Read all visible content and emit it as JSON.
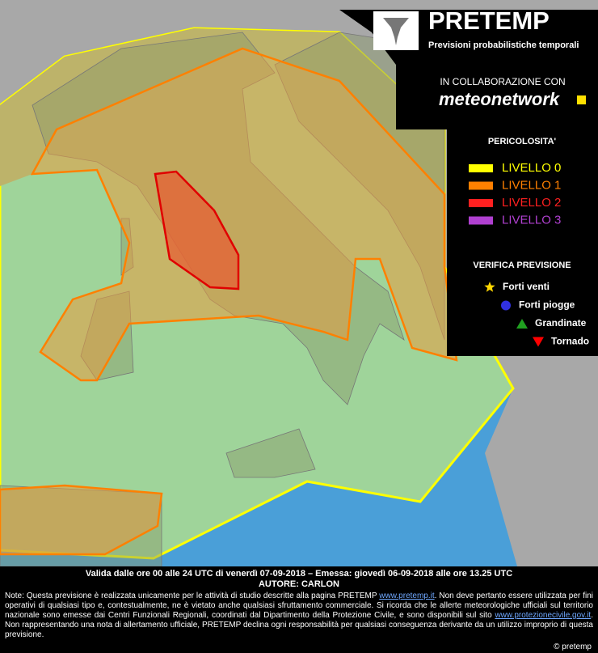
{
  "header": {
    "title": "PRETEMP",
    "subtitle": "Previsioni probabilistiche temporali",
    "collaboration": "IN COLLABORAZIONE CON",
    "partner": "meteonetwork"
  },
  "legend": {
    "title": "PERICOLOSITA'",
    "levels": [
      {
        "label": "LIVELLO 0",
        "color": "#ffff00"
      },
      {
        "label": "LIVELLO 1",
        "color": "#ff8000"
      },
      {
        "label": "LIVELLO 2",
        "color": "#ff2020"
      },
      {
        "label": "LIVELLO 3",
        "color": "#b040d0"
      }
    ]
  },
  "verification": {
    "title": "VERIFICA PREVISIONE",
    "items": [
      {
        "label": "Forti venti",
        "color": "#ffd700"
      },
      {
        "label": "Forti piogge",
        "color": "#3030e0"
      },
      {
        "label": "Grandinate",
        "color": "#20a020"
      },
      {
        "label": "Tornado",
        "color": "#ff0000"
      }
    ]
  },
  "footer": {
    "validity": "Valida dalle ore 00 alle 24 UTC di venerdì 07-09-2018 – Emessa: giovedì 06-09-2018 alle ore 13.25 UTC",
    "author": "AUTORE: CARLON",
    "note": [
      "Note: Questa previsione è realizzata unicamente per le attività di studio descritte alla pagina PRETEMP ",
      "www.pretemp.it",
      ". Non deve pertanto essere utilizzata per fini operativi di qualsiasi tipo e, contestualmente, ne è vietato anche qualsiasi sfruttamento commerciale. Si ricorda che le allerte meteorologiche ufficiali sul territorio nazionale sono emesse dai Centri Funzionali Regionali, coordinati dal Dipartimento della Protezione Civile, e sono disponibili sul sito ",
      "www.protezionecivile.gov.it",
      ". Non rappresentando una nota di allertamento ufficiale, PRETEMP declina ogni responsabilità per qualsiasi conseguenza derivante da un utilizzo improprio di questa previsione."
    ],
    "copyright": "© pretemp"
  }
}
